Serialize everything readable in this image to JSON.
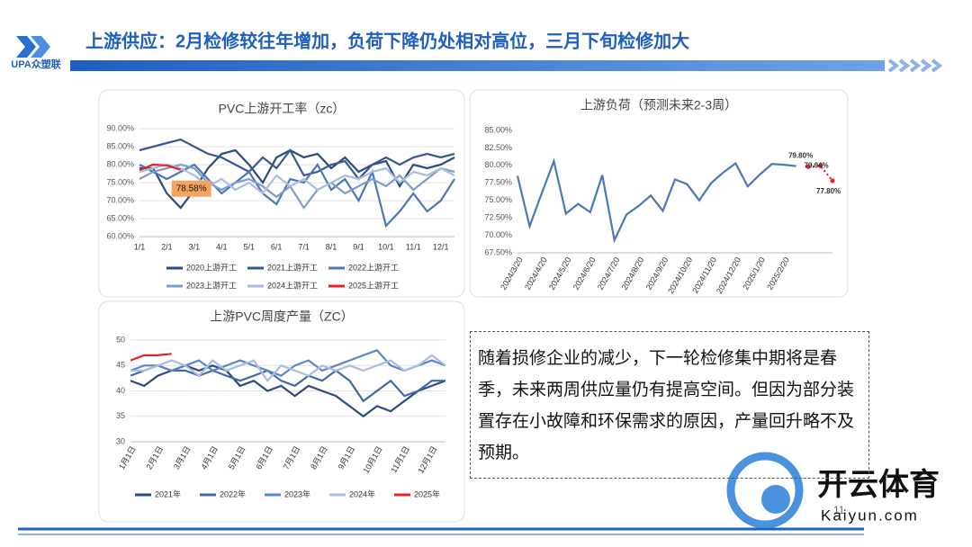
{
  "header": {
    "logo": "UPA众塑联",
    "title": "上游供应：2月检修较往年增加，负荷下降仍处相对高位，三月下旬检修加大"
  },
  "chart_data": [
    {
      "type": "line",
      "title": "PVC上游开工率（zc）",
      "categories": [
        "1/1",
        null,
        "2/1",
        null,
        "3/1",
        null,
        "4/1",
        null,
        "5/1",
        null,
        "6/1",
        null,
        "7/1",
        null,
        "8/1",
        null,
        "9/1",
        null,
        "10/1",
        null,
        "11/1",
        null,
        "12/1",
        null
      ],
      "ylim": [
        60,
        90
      ],
      "yticks": [
        {
          "value": 60,
          "label": "60.00%"
        },
        {
          "value": 65,
          "label": "65.00%"
        },
        {
          "value": 70,
          "label": "70.00%"
        },
        {
          "value": 75,
          "label": "75.00%"
        },
        {
          "value": 80,
          "label": "80.00%"
        },
        {
          "value": 85,
          "label": "85.00%"
        },
        {
          "value": 90,
          "label": "90.00%"
        }
      ],
      "grid": true,
      "series": [
        {
          "name": "2020上游开工",
          "color": "#2b4c7e",
          "values": [
            79,
            79,
            72,
            68,
            73,
            79,
            83,
            84,
            80,
            75,
            82,
            84,
            82,
            83,
            79,
            82,
            78,
            80,
            81,
            74,
            80,
            79,
            80,
            82
          ]
        },
        {
          "name": "2021上游开工",
          "color": "#36598f",
          "values": [
            84,
            85,
            86,
            87,
            85,
            83,
            82,
            80,
            78,
            82,
            79,
            84,
            77,
            78,
            80,
            81,
            76,
            80,
            82,
            80,
            82,
            83,
            82,
            83
          ]
        },
        {
          "name": "2022上游开工",
          "color": "#4a78b8",
          "values": [
            80,
            78,
            76,
            78,
            80,
            76,
            72,
            75,
            78,
            72,
            69,
            76,
            75,
            80,
            73,
            76,
            70,
            78,
            63,
            67,
            72,
            67,
            70,
            76
          ]
        },
        {
          "name": "2023上游开工",
          "color": "#7f9cc9",
          "values": [
            76,
            78,
            79,
            80,
            79,
            75,
            73,
            75,
            76,
            74,
            71,
            74,
            68,
            73,
            75,
            72,
            74,
            76,
            74,
            77,
            73,
            76,
            79,
            78
          ]
        },
        {
          "name": "2024上游开工",
          "color": "#a9bde0",
          "values": [
            78,
            79,
            80,
            79,
            77,
            74,
            76,
            73,
            75,
            72,
            77,
            74,
            76,
            73,
            75,
            77,
            76,
            78,
            79,
            75,
            78,
            77,
            79,
            77
          ]
        },
        {
          "name": "2025上游开工",
          "color": "#e8202a",
          "values": [
            78.5,
            80,
            79.8,
            78.58,
            null,
            null,
            null,
            null,
            null,
            null,
            null,
            null,
            null,
            null,
            null,
            null,
            null,
            null,
            null,
            null,
            null,
            null,
            null,
            null
          ],
          "value_labels": [
            null,
            null,
            null,
            "78.58%",
            null,
            null,
            null,
            null,
            null,
            null,
            null,
            null,
            null,
            null,
            null,
            null,
            null,
            null,
            null,
            null,
            null,
            null,
            null,
            null
          ]
        }
      ]
    },
    {
      "type": "line",
      "title": "上游负荷（预测未来2-3周）",
      "categories": [
        "2024/3/20",
        null,
        "2024/4/20",
        null,
        "2024/5/20",
        null,
        "2024/6/20",
        null,
        "2024/7/20",
        null,
        "2024/8/20",
        null,
        "2024/9/20",
        null,
        "2024/10/20",
        null,
        "2024/11/20",
        null,
        "2024/12/20",
        null,
        "2025/1/20",
        null,
        "2025/2/20",
        null,
        null,
        null,
        null
      ],
      "ylim": [
        67.5,
        85
      ],
      "yticks": [
        {
          "value": 67.5,
          "label": "67.50%"
        },
        {
          "value": 70,
          "label": "70.00%"
        },
        {
          "value": 72.5,
          "label": "72.50%"
        },
        {
          "value": 75,
          "label": "75.00%"
        },
        {
          "value": 77.5,
          "label": "77.50%"
        },
        {
          "value": 80,
          "label": "80.00%"
        },
        {
          "value": 82.5,
          "label": "82.50%"
        },
        {
          "value": 85,
          "label": "85.00%"
        }
      ],
      "grid": false,
      "series": [
        {
          "color": "#4a78b8",
          "values": [
            78.5,
            71.3,
            76,
            80.6,
            73.1,
            74.5,
            73.3,
            78.6,
            69.3,
            73,
            74.2,
            75.7,
            73.5,
            78,
            77.3,
            75,
            77.5,
            79,
            80.3,
            77,
            78.7,
            80.2,
            80.1,
            79.9,
            null,
            null,
            null
          ]
        },
        {
          "color": "#e8202a",
          "line_style": "dotted",
          "values": [
            null,
            null,
            null,
            null,
            null,
            null,
            null,
            null,
            null,
            null,
            null,
            null,
            null,
            null,
            null,
            null,
            null,
            null,
            null,
            null,
            null,
            null,
            null,
            null,
            79.8,
            79.94,
            77.8
          ],
          "value_labels": [
            null,
            null,
            null,
            null,
            null,
            null,
            null,
            null,
            null,
            null,
            null,
            null,
            null,
            null,
            null,
            null,
            null,
            null,
            null,
            null,
            null,
            null,
            null,
            null,
            "79.80%",
            "79.94%",
            "77.80%"
          ]
        }
      ]
    },
    {
      "type": "line",
      "title": "上游PVC周度产量（ZC）",
      "categories": [
        "1月1日",
        null,
        "2月1日",
        null,
        "3月1日",
        null,
        "4月1日",
        null,
        "5月1日",
        null,
        "6月1日",
        null,
        "7月1日",
        null,
        "8月1日",
        null,
        "9月1日",
        null,
        "10月1日",
        null,
        "11月1日",
        null,
        "12月1日",
        null
      ],
      "ylim": [
        30,
        50
      ],
      "yticks": [
        30,
        35,
        40,
        45,
        50
      ],
      "grid": true,
      "series": [
        {
          "name": "2021年",
          "color": "#2b4c7e",
          "values": [
            42,
            41,
            43,
            44,
            45,
            44,
            45,
            44,
            41,
            42,
            40,
            41,
            39,
            41,
            40,
            39,
            37,
            35,
            37,
            36,
            38,
            40,
            41,
            42
          ]
        },
        {
          "name": "2022年",
          "color": "#3f6aa6",
          "values": [
            43,
            44,
            45,
            44,
            44,
            43,
            44,
            43,
            42,
            43,
            44,
            42,
            41,
            43,
            42,
            44,
            42,
            38,
            40,
            42,
            39,
            40,
            42,
            42
          ]
        },
        {
          "name": "2023年",
          "color": "#5a86c4",
          "values": [
            44,
            45,
            45,
            44,
            45,
            46,
            44,
            45,
            46,
            45,
            44,
            43,
            45,
            46,
            44,
            45,
            46,
            47,
            48,
            45,
            44,
            45,
            46,
            45
          ]
        },
        {
          "name": "2024年",
          "color": "#a9bde0",
          "values": [
            44,
            44,
            45,
            46,
            45,
            43,
            46,
            44,
            45,
            46,
            42,
            45,
            44,
            43,
            45,
            44,
            45,
            44,
            45,
            46,
            44,
            45,
            47,
            45
          ]
        },
        {
          "name": "2025年",
          "color": "#e8202a",
          "values": [
            46,
            47,
            47,
            47.3,
            null,
            null,
            null,
            null,
            null,
            null,
            null,
            null,
            null,
            null,
            null,
            null,
            null,
            null,
            null,
            null,
            null,
            null,
            null,
            null
          ]
        }
      ]
    }
  ],
  "textbox": "随着损修企业的减少，下一轮检修集中期将是春季，未来两周供应量仍有提高空间。但因为部分装置存在小故障和环保需求的原因，产量回升略不及预期。",
  "watermark": {
    "cn": "开云体育",
    "en": "Kaiyun.com"
  },
  "page_number": "11"
}
